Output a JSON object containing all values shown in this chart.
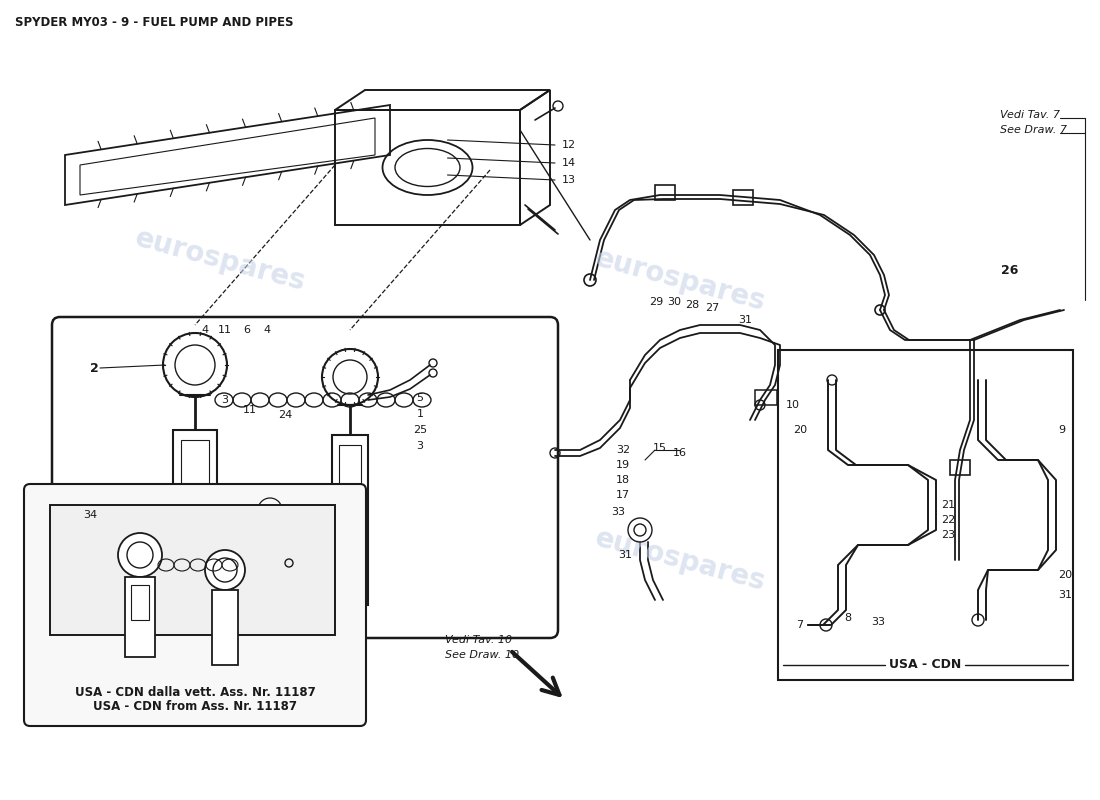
{
  "title": "SPYDER MY03 - 9 - FUEL PUMP AND PIPES",
  "bg_color": "#ffffff",
  "line_color": "#1a1a1a",
  "text_color": "#1a1a1a",
  "watermark_color": "#c8d4e8",
  "watermark_text": "eurospares",
  "title_fontsize": 8.5,
  "label_fontsize": 8,
  "parts_labels": {
    "vedi_tav_7": "Vedi Tav. 7",
    "see_draw_7": "See Draw. 7",
    "vedi_tav_10": "Vedi Tav. 10",
    "see_draw_10": "See Draw. 10",
    "usa_cdn_box1_line1": "USA - CDN dalla vett. Ass. Nr. 11187",
    "usa_cdn_box1_line2": "USA - CDN from Ass. Nr. 11187",
    "usa_cdn_box2": "USA - CDN"
  }
}
